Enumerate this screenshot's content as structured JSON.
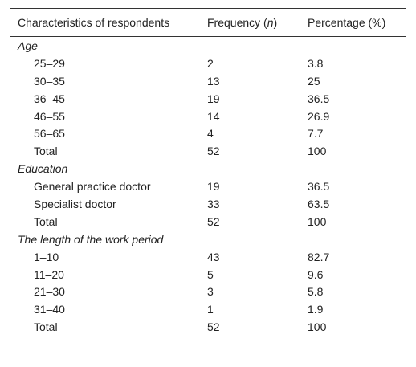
{
  "table": {
    "header": {
      "characteristics": "Characteristics of respondents",
      "frequency": [
        "Frequency (",
        "n",
        ")"
      ],
      "percentage": "Percentage (%)"
    },
    "groups": [
      {
        "label": "Age",
        "rows": [
          {
            "label": "25–29",
            "frequency": 2,
            "percentage": 3.8
          },
          {
            "label": "30–35",
            "frequency": 13,
            "percentage": 25
          },
          {
            "label": "36–45",
            "frequency": 19,
            "percentage": 36.5
          },
          {
            "label": "46–55",
            "frequency": 14,
            "percentage": 26.9
          },
          {
            "label": "56–65",
            "frequency": 4,
            "percentage": 7.7
          },
          {
            "label": "Total",
            "frequency": 52,
            "percentage": 100
          }
        ]
      },
      {
        "label": "Education",
        "rows": [
          {
            "label": "General practice doctor",
            "frequency": 19,
            "percentage": 36.5
          },
          {
            "label": "Specialist doctor",
            "frequency": 33,
            "percentage": 63.5
          },
          {
            "label": "Total",
            "frequency": 52,
            "percentage": 100
          }
        ]
      },
      {
        "label": "The length of the work period",
        "rows": [
          {
            "label": "1–10",
            "frequency": 43,
            "percentage": 82.7
          },
          {
            "label": "11–20",
            "frequency": 5,
            "percentage": 9.6
          },
          {
            "label": "21–30",
            "frequency": 3,
            "percentage": 5.8
          },
          {
            "label": "31–40",
            "frequency": 1,
            "percentage": 1.9
          },
          {
            "label": "Total",
            "frequency": 52,
            "percentage": 100
          }
        ]
      }
    ]
  }
}
